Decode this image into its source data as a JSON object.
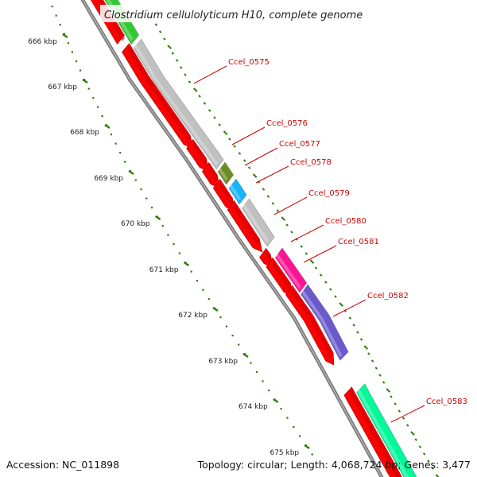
{
  "title": "Clostridium cellulolyticum H10, complete genome",
  "footer": {
    "accession": "Accession: NC_011898",
    "topology": "Topology: circular; Length: 4,068,724 bp; Genes: 3,477"
  },
  "colors": {
    "cds": "#ff0000",
    "backbone": "#888888",
    "ruler": "#2e7d00",
    "gene_label": "#cc0000"
  },
  "kbp_ticks": [
    "666 kbp",
    "667 kbp",
    "668 kbp",
    "669 kbp",
    "670 kbp",
    "671 kbp",
    "672 kbp",
    "673 kbp",
    "674 kbp",
    "675 kbp"
  ],
  "genes": [
    {
      "id": "Ccel_0575"
    },
    {
      "id": "Ccel_0576"
    },
    {
      "id": "Ccel_0577"
    },
    {
      "id": "Ccel_0578"
    },
    {
      "id": "Ccel_0579"
    },
    {
      "id": "Ccel_0580"
    },
    {
      "id": "Ccel_0581"
    },
    {
      "id": "Ccel_0582"
    },
    {
      "id": "Ccel_0583"
    }
  ],
  "feature_colors": [
    "#32c832",
    "#c0c0c0",
    "#6b8e23",
    "#19b4ff",
    "#c0c0c0",
    "#ff1493",
    "#6a5acd",
    "#00fa9a"
  ]
}
